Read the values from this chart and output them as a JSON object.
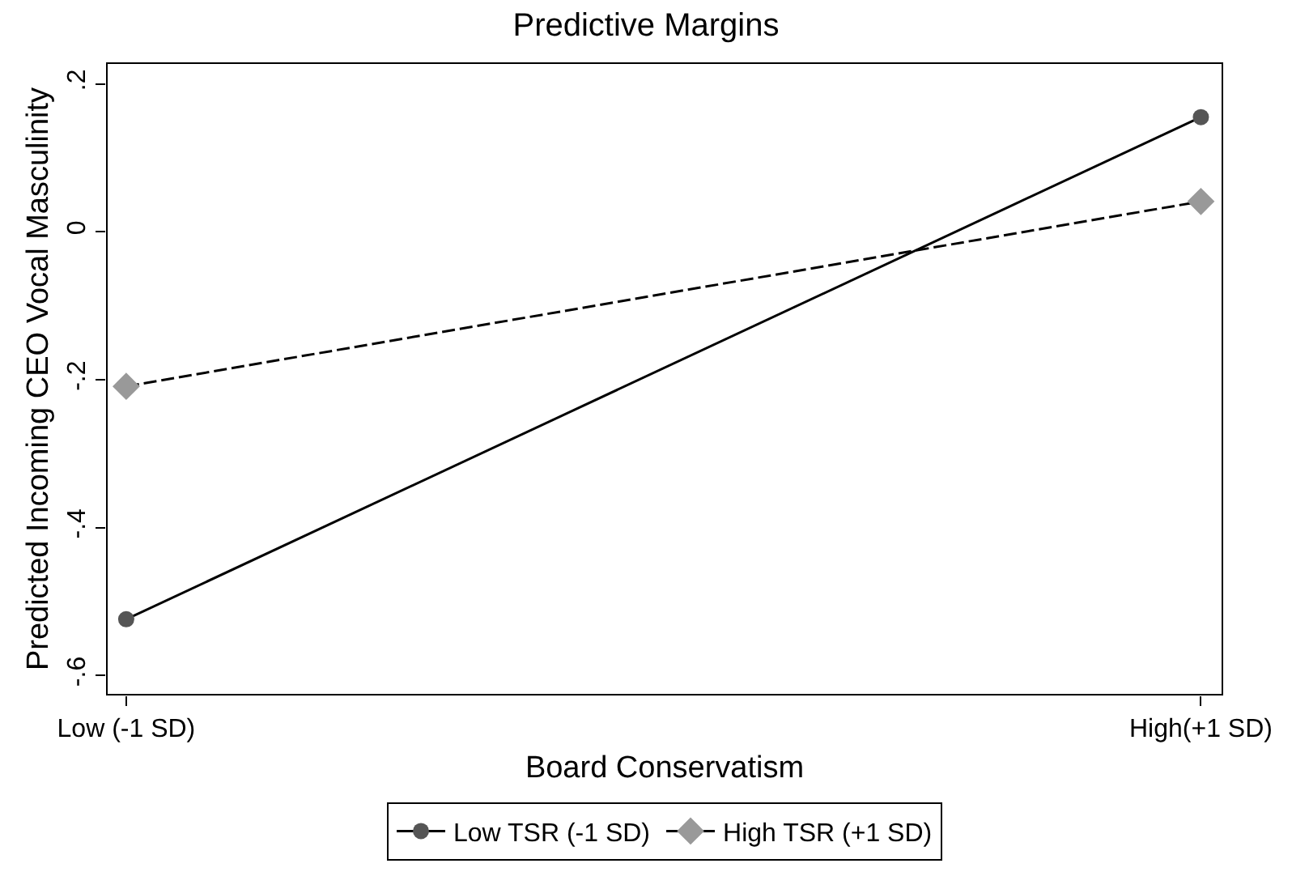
{
  "chart_data": {
    "type": "line",
    "title": "Predictive Margins",
    "xlabel": "Board Conservatism",
    "ylabel": "Predicted Incoming CEO Vocal Masculinity",
    "categories": [
      "Low (-1 SD)",
      "High(+1 SD)"
    ],
    "series": [
      {
        "name": "Low TSR (-1 SD)",
        "color": "#000000",
        "colors": [
          "#555555",
          "#555555"
        ],
        "values": [
          -0.524,
          0.155
        ],
        "marker": "circle",
        "line_style": "solid"
      },
      {
        "name": "High TSR (+1 SD)",
        "color": "#000000",
        "colors": [
          "#999999",
          "#999999"
        ],
        "values": [
          -0.209,
          0.041
        ],
        "marker": "diamond",
        "line_style": "dashed"
      }
    ],
    "ylim": [
      -0.626,
      0.228
    ],
    "yticks": [
      {
        "value": -0.6,
        "label": "-.6"
      },
      {
        "value": -0.4,
        "label": "-.4"
      },
      {
        "value": -0.2,
        "label": "-.2"
      },
      {
        "value": 0,
        "label": "0"
      },
      {
        "value": 0.2,
        "label": ".2"
      }
    ],
    "legend": "bottom"
  }
}
